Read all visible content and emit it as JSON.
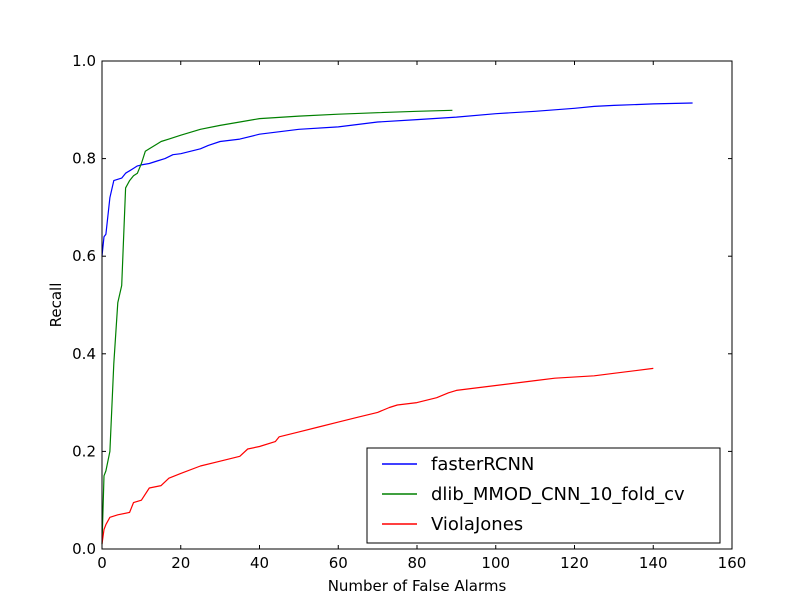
{
  "chart_data": {
    "type": "line",
    "title": "",
    "xlabel": "Number of False Alarms",
    "ylabel": "Recall",
    "xlim": [
      0,
      160
    ],
    "ylim": [
      0.0,
      1.0
    ],
    "xticks": [
      0,
      20,
      40,
      60,
      80,
      100,
      120,
      140,
      160
    ],
    "yticks": [
      0.0,
      0.2,
      0.4,
      0.6,
      0.8,
      1.0
    ],
    "xtick_labels": [
      "0",
      "20",
      "40",
      "60",
      "80",
      "100",
      "120",
      "140",
      "160"
    ],
    "ytick_labels": [
      "0.0",
      "0.2",
      "0.4",
      "0.6",
      "0.8",
      "1.0"
    ],
    "grid": false,
    "legend_position": "lower-right",
    "series": [
      {
        "name": "fasterRCNN",
        "color": "#0000ff",
        "x": [
          0,
          0.5,
          1,
          2,
          3,
          5,
          6,
          7,
          8,
          9,
          10,
          12,
          14,
          16,
          18,
          20,
          25,
          27,
          30,
          35,
          40,
          50,
          60,
          70,
          80,
          90,
          100,
          110,
          120,
          125,
          130,
          140,
          150
        ],
        "y": [
          0.6,
          0.64,
          0.645,
          0.72,
          0.755,
          0.76,
          0.77,
          0.775,
          0.78,
          0.785,
          0.787,
          0.79,
          0.795,
          0.8,
          0.808,
          0.81,
          0.82,
          0.827,
          0.835,
          0.84,
          0.85,
          0.86,
          0.865,
          0.875,
          0.88,
          0.885,
          0.892,
          0.897,
          0.903,
          0.907,
          0.909,
          0.912,
          0.914
        ]
      },
      {
        "name": "dlib_MMOD_CNN_10_fold_cv",
        "color": "#008000",
        "x": [
          0,
          0.5,
          1,
          2,
          3,
          4,
          5,
          6,
          7,
          8,
          9,
          10,
          11,
          12,
          13,
          14,
          15,
          17,
          20,
          25,
          30,
          35,
          40,
          50,
          60,
          70,
          80,
          89
        ],
        "y": [
          0.01,
          0.15,
          0.16,
          0.2,
          0.38,
          0.505,
          0.54,
          0.74,
          0.755,
          0.765,
          0.77,
          0.79,
          0.815,
          0.82,
          0.825,
          0.83,
          0.835,
          0.84,
          0.848,
          0.86,
          0.868,
          0.875,
          0.882,
          0.887,
          0.891,
          0.894,
          0.897,
          0.899
        ]
      },
      {
        "name": "ViolaJones",
        "color": "#ff0000",
        "x": [
          0,
          0.5,
          1,
          2,
          4,
          7,
          8,
          10,
          12,
          15,
          17,
          20,
          25,
          30,
          35,
          37,
          40,
          44,
          45,
          50,
          55,
          60,
          65,
          70,
          73,
          75,
          80,
          85,
          88,
          90,
          100,
          110,
          115,
          125,
          130,
          140
        ],
        "y": [
          0.01,
          0.04,
          0.05,
          0.065,
          0.07,
          0.075,
          0.095,
          0.1,
          0.125,
          0.13,
          0.145,
          0.155,
          0.17,
          0.18,
          0.19,
          0.205,
          0.21,
          0.22,
          0.23,
          0.24,
          0.25,
          0.26,
          0.27,
          0.28,
          0.29,
          0.295,
          0.3,
          0.31,
          0.32,
          0.325,
          0.335,
          0.345,
          0.35,
          0.355,
          0.36,
          0.37
        ]
      }
    ]
  }
}
